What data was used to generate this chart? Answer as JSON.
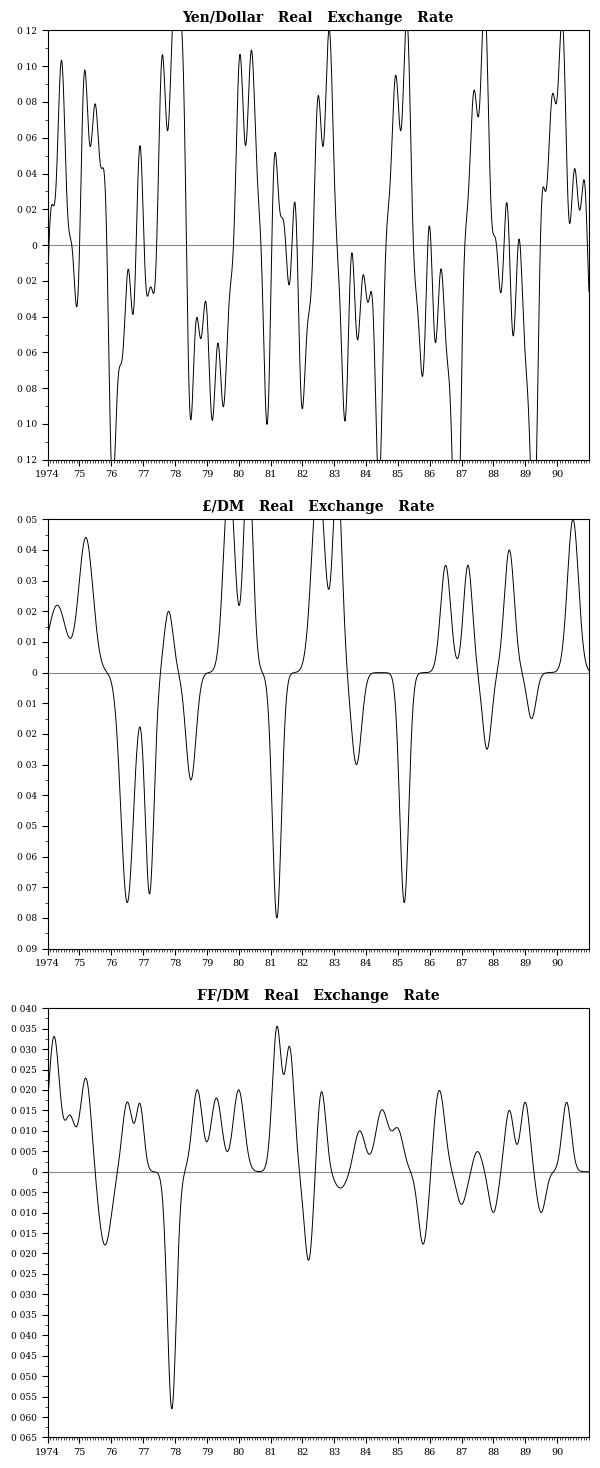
{
  "chart1": {
    "title": "Yen/Dollar   Real   Exchange   Rate",
    "ylim": [
      -0.12,
      0.12
    ],
    "yticks": [
      0.12,
      0.1,
      0.08,
      0.06,
      0.04,
      0.02,
      0,
      -0.02,
      -0.04,
      -0.06,
      -0.08,
      -0.1,
      -0.12
    ],
    "ytick_labels": [
      "0 12",
      "0 10",
      "0 08",
      "0 06",
      "0 04",
      "0 02",
      "0",
      "0 02",
      "0 04",
      "0 06",
      "0 08",
      "0 10",
      "0 12"
    ]
  },
  "chart2": {
    "title": "£/DM   Real   Exchange   Rate",
    "ylim": [
      -0.09,
      0.05
    ],
    "yticks": [
      0.05,
      0.04,
      0.03,
      0.02,
      0.01,
      0,
      -0.01,
      -0.02,
      -0.03,
      -0.04,
      -0.05,
      -0.06,
      -0.07,
      -0.08,
      -0.09
    ],
    "ytick_labels": [
      "0 05",
      "0 04",
      "0 03",
      "0 02",
      "0 01",
      "0",
      "0 01",
      "0 02",
      "0 03",
      "0 04",
      "0 05",
      "0 06",
      "0 07",
      "0 08",
      "0 09"
    ]
  },
  "chart3": {
    "title": "FF/DM   Real   Exchange   Rate",
    "ylim": [
      -0.065,
      0.04
    ],
    "yticks": [
      0.04,
      0.035,
      0.03,
      0.025,
      0.02,
      0.015,
      0.01,
      0.005,
      0,
      -0.005,
      -0.01,
      -0.015,
      -0.02,
      -0.025,
      -0.03,
      -0.035,
      -0.04,
      -0.045,
      -0.05,
      -0.055,
      -0.06,
      -0.065
    ],
    "ytick_labels": [
      "0 040",
      "0 035",
      "0 030",
      "0 025",
      "0 020",
      "0 015",
      "0 010",
      "0 005",
      "0",
      "0 005",
      "0 010",
      "0 015",
      "0 020",
      "0 025",
      "0 030",
      "0 035",
      "0 040",
      "0 045",
      "0 050",
      "0 055",
      "0 060",
      "0 065"
    ]
  },
  "xtick_vals": [
    1974,
    1975,
    1976,
    1977,
    1978,
    1979,
    1980,
    1981,
    1982,
    1983,
    1984,
    1985,
    1986,
    1987,
    1988,
    1989,
    1990
  ],
  "xtick_labels": [
    "1974",
    "75",
    "76",
    "77",
    "78",
    "79",
    "80",
    "81",
    "82",
    "83",
    "84",
    "85",
    "86",
    "87",
    "88",
    "89",
    "90"
  ],
  "line_color": "#000000",
  "zero_line_color": "#888888",
  "background_color": "#ffffff",
  "figsize": [
    6.0,
    14.68
  ],
  "dpi": 100
}
